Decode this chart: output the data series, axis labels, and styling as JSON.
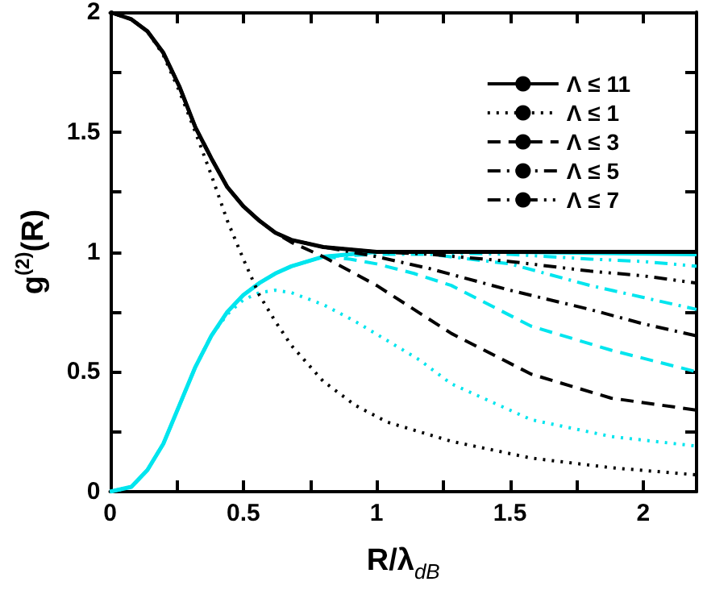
{
  "chart_data": {
    "type": "line",
    "xlabel": "R/λ$_{dB}$",
    "ylabel": "g$^{(2)}$(R)",
    "xlim": [
      0,
      2.2
    ],
    "ylim": [
      0,
      2
    ],
    "xticks": [
      0,
      {
        "value": 0.25,
        "label": null
      },
      0.5,
      {
        "value": 0.75,
        "label": null
      },
      1,
      {
        "value": 1.25,
        "label": null
      },
      1.5,
      {
        "value": 1.75,
        "label": null
      },
      2
    ],
    "yticks": [
      0,
      {
        "value": 0.25,
        "label": null
      },
      0.5,
      {
        "value": 0.75,
        "label": null
      },
      1,
      {
        "value": 1.25,
        "label": null
      },
      1.5,
      {
        "value": 1.75,
        "label": null
      },
      2
    ],
    "legend": "top right",
    "marker": "none",
    "grid": false,
    "series": [
      {
        "name": "Λ ≤ 11",
        "color": "#000000",
        "line_style": "solid",
        "x": [
          0,
          0.08,
          0.14,
          0.2,
          0.26,
          0.32,
          0.38,
          0.44,
          0.5,
          0.56,
          0.62,
          0.68,
          0.8,
          0.9,
          1.0,
          1.2,
          1.6,
          2.0,
          2.2
        ],
        "values": [
          2,
          1.97,
          1.92,
          1.83,
          1.69,
          1.52,
          1.39,
          1.27,
          1.19,
          1.13,
          1.08,
          1.05,
          1.02,
          1.01,
          1,
          1,
          1,
          1,
          1
        ]
      },
      {
        "name": "Λ ≤ 1",
        "color": "#000000",
        "line_style": "dotted",
        "x": [
          0,
          0.08,
          0.14,
          0.2,
          0.26,
          0.32,
          0.38,
          0.44,
          0.5,
          0.56,
          0.62,
          0.68,
          0.8,
          0.92,
          1.04,
          1.16,
          1.28,
          1.58,
          1.88,
          2.2
        ],
        "values": [
          2,
          1.97,
          1.92,
          1.82,
          1.67,
          1.5,
          1.32,
          1.13,
          0.97,
          0.82,
          0.71,
          0.61,
          0.46,
          0.36,
          0.29,
          0.25,
          0.21,
          0.14,
          0.1,
          0.07
        ]
      },
      {
        "name": "Λ ≤ 3",
        "color": "#000000",
        "line_style": "dashed",
        "x": [
          0,
          0.08,
          0.14,
          0.2,
          0.26,
          0.32,
          0.38,
          0.44,
          0.5,
          0.56,
          0.62,
          0.68,
          0.8,
          0.9,
          1.0,
          1.14,
          1.28,
          1.58,
          1.88,
          2.2
        ],
        "values": [
          2,
          1.97,
          1.92,
          1.83,
          1.69,
          1.52,
          1.39,
          1.27,
          1.19,
          1.13,
          1.08,
          1.04,
          0.98,
          0.92,
          0.86,
          0.76,
          0.66,
          0.49,
          0.39,
          0.34
        ]
      },
      {
        "name": "Λ ≤ 5",
        "color": "#000000",
        "line_style": "dashdot",
        "x": [
          0,
          0.08,
          0.14,
          0.2,
          0.26,
          0.32,
          0.38,
          0.44,
          0.5,
          0.56,
          0.62,
          0.68,
          0.8,
          0.9,
          1.0,
          1.2,
          1.5,
          1.8,
          2.0,
          2.2
        ],
        "values": [
          2,
          1.97,
          1.92,
          1.83,
          1.69,
          1.52,
          1.39,
          1.27,
          1.19,
          1.13,
          1.08,
          1.05,
          1.02,
          1.0,
          0.98,
          0.93,
          0.84,
          0.76,
          0.7,
          0.65
        ]
      },
      {
        "name": "Λ ≤ 7",
        "color": "#000000",
        "line_style": "dashdotdot",
        "x": [
          0,
          0.08,
          0.14,
          0.2,
          0.26,
          0.32,
          0.38,
          0.44,
          0.5,
          0.56,
          0.62,
          0.68,
          0.8,
          0.9,
          1.0,
          1.2,
          1.5,
          1.8,
          2.0,
          2.2
        ],
        "values": [
          2,
          1.97,
          1.92,
          1.83,
          1.69,
          1.52,
          1.39,
          1.27,
          1.19,
          1.13,
          1.08,
          1.05,
          1.02,
          1.01,
          1.0,
          0.99,
          0.96,
          0.92,
          0.9,
          0.87
        ]
      },
      {
        "color": "#00e5ee",
        "line_style": "solid",
        "x": [
          0,
          0.08,
          0.14,
          0.2,
          0.26,
          0.32,
          0.38,
          0.44,
          0.5,
          0.56,
          0.62,
          0.68,
          0.8,
          0.9,
          1.0,
          1.5,
          2.2
        ],
        "values": [
          0,
          0.02,
          0.09,
          0.2,
          0.36,
          0.52,
          0.65,
          0.75,
          0.82,
          0.87,
          0.91,
          0.94,
          0.98,
          0.99,
          1.0,
          1.0,
          0.99
        ]
      },
      {
        "color": "#00e5ee",
        "line_style": "dotted",
        "x": [
          0,
          0.08,
          0.14,
          0.2,
          0.26,
          0.32,
          0.38,
          0.44,
          0.5,
          0.56,
          0.62,
          0.68,
          0.8,
          0.92,
          1.04,
          1.16,
          1.28,
          1.58,
          1.88,
          2.2
        ],
        "values": [
          0,
          0.02,
          0.09,
          0.2,
          0.36,
          0.52,
          0.65,
          0.74,
          0.8,
          0.83,
          0.84,
          0.83,
          0.78,
          0.71,
          0.63,
          0.55,
          0.45,
          0.3,
          0.23,
          0.19
        ]
      },
      {
        "color": "#00e5ee",
        "line_style": "dashed",
        "x": [
          0,
          0.08,
          0.14,
          0.2,
          0.26,
          0.32,
          0.38,
          0.44,
          0.5,
          0.56,
          0.62,
          0.68,
          0.8,
          0.9,
          1.0,
          1.14,
          1.28,
          1.58,
          1.88,
          2.2
        ],
        "values": [
          0,
          0.02,
          0.09,
          0.2,
          0.36,
          0.52,
          0.65,
          0.75,
          0.82,
          0.87,
          0.91,
          0.94,
          0.98,
          0.97,
          0.95,
          0.91,
          0.86,
          0.69,
          0.59,
          0.5
        ]
      },
      {
        "color": "#00e5ee",
        "line_style": "dashdot",
        "x": [
          0,
          0.08,
          0.14,
          0.2,
          0.26,
          0.32,
          0.38,
          0.44,
          0.5,
          0.56,
          0.62,
          0.68,
          0.8,
          1.0,
          1.2,
          1.5,
          1.8,
          2.0,
          2.2
        ],
        "values": [
          0,
          0.02,
          0.09,
          0.2,
          0.36,
          0.52,
          0.65,
          0.75,
          0.82,
          0.87,
          0.91,
          0.94,
          0.98,
          0.99,
          0.99,
          0.95,
          0.86,
          0.81,
          0.76
        ]
      },
      {
        "color": "#00e5ee",
        "line_style": "dashdotdot",
        "x": [
          0,
          0.08,
          0.14,
          0.2,
          0.26,
          0.32,
          0.38,
          0.44,
          0.5,
          0.56,
          0.62,
          0.68,
          0.8,
          0.9,
          1.0,
          1.5,
          1.8,
          2.0,
          2.2
        ],
        "values": [
          0,
          0.02,
          0.09,
          0.2,
          0.36,
          0.52,
          0.65,
          0.75,
          0.82,
          0.87,
          0.91,
          0.94,
          0.98,
          0.99,
          1.0,
          0.99,
          0.97,
          0.96,
          0.94
        ]
      }
    ]
  }
}
